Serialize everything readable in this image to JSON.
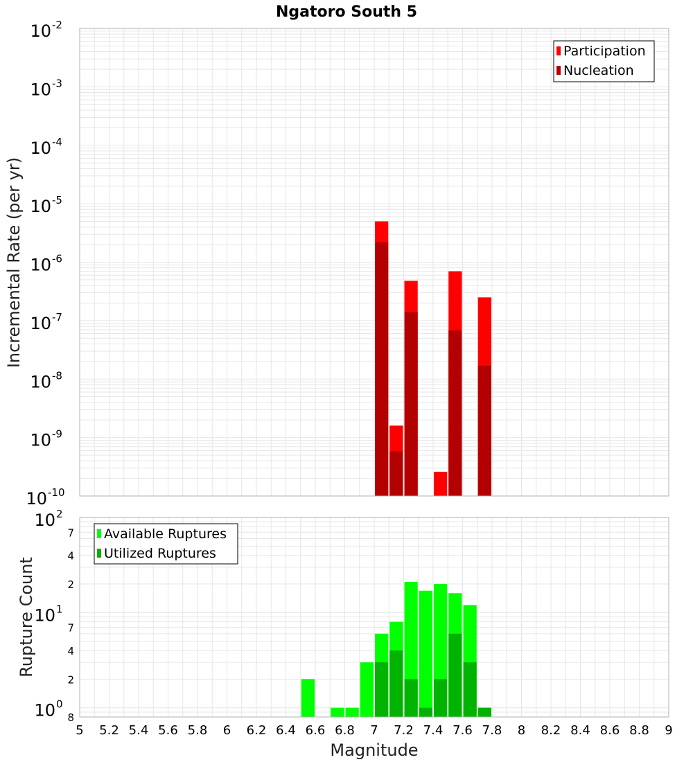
{
  "chart_data": [
    {
      "type": "bar",
      "title": "Ngatoro South 5",
      "ylabel": "Incremental Rate (per yr)",
      "xlabel": "",
      "xlim": [
        5,
        9
      ],
      "ylim": [
        1e-10,
        0.01
      ],
      "yscale": "log",
      "bin_width": 0.1,
      "legend": {
        "placement": "top-right",
        "entries": [
          {
            "name": "Participation",
            "color": "#ff0000"
          },
          {
            "name": "Nucleation",
            "color": "#b30000"
          }
        ]
      },
      "y_ticks": [
        {
          "base": "10",
          "exp": "-10",
          "value": 1e-10
        },
        {
          "base": "10",
          "exp": "-9",
          "value": 1e-09
        },
        {
          "base": "10",
          "exp": "-8",
          "value": 1e-08
        },
        {
          "base": "10",
          "exp": "-7",
          "value": 1e-07
        },
        {
          "base": "10",
          "exp": "-6",
          "value": 1e-06
        },
        {
          "base": "10",
          "exp": "-5",
          "value": 1e-05
        },
        {
          "base": "10",
          "exp": "-4",
          "value": 0.0001
        },
        {
          "base": "10",
          "exp": "-3",
          "value": 0.001
        },
        {
          "base": "10",
          "exp": "-2",
          "value": 0.01
        }
      ],
      "x": [
        7.05,
        7.15,
        7.25,
        7.45,
        7.55,
        7.75
      ],
      "series": [
        {
          "name": "Participation",
          "color": "#ff0000",
          "values": [
            5e-06,
            1.6e-09,
            4.8e-07,
            2.6e-10,
            7e-07,
            2.5e-07
          ]
        },
        {
          "name": "Nucleation",
          "color": "#b30000",
          "values": [
            2.2e-06,
            5.8e-10,
            1.4e-07,
            null,
            6.8e-08,
            1.7e-08
          ]
        }
      ]
    },
    {
      "type": "bar",
      "title": "",
      "ylabel": "Rupture Count",
      "xlabel": "Magnitude",
      "xlim": [
        5,
        9
      ],
      "ylim": [
        0.8,
        100
      ],
      "yscale": "log",
      "bin_width": 0.1,
      "legend": {
        "placement": "top-left",
        "entries": [
          {
            "name": "Available Ruptures",
            "color": "#00ff00"
          },
          {
            "name": "Utilized Ruptures",
            "color": "#00b300"
          }
        ]
      },
      "y_ticks": [
        {
          "base": "10",
          "exp": "0",
          "value": 1
        },
        {
          "base": "10",
          "exp": "1",
          "value": 10
        },
        {
          "base": "10",
          "exp": "2",
          "value": 100
        }
      ],
      "y_minor_labels": [
        {
          "label": "8",
          "value": 0.8
        },
        {
          "label": "2",
          "value": 2
        },
        {
          "label": "4",
          "value": 4
        },
        {
          "label": "7",
          "value": 7
        },
        {
          "label": "2",
          "value": 20
        },
        {
          "label": "4",
          "value": 40
        },
        {
          "label": "7",
          "value": 70
        }
      ],
      "x_ticks": [
        "5",
        "5.2",
        "5.4",
        "5.6",
        "5.8",
        "6",
        "6.2",
        "6.4",
        "6.6",
        "6.8",
        "7",
        "7.2",
        "7.4",
        "7.6",
        "7.8",
        "8",
        "8.2",
        "8.4",
        "8.6",
        "8.8",
        "9"
      ],
      "x": [
        6.55,
        6.75,
        6.85,
        6.95,
        7.05,
        7.15,
        7.25,
        7.35,
        7.45,
        7.55,
        7.65,
        7.75
      ],
      "series": [
        {
          "name": "Available Ruptures",
          "color": "#00ff00",
          "values": [
            2,
            1,
            1,
            3,
            6,
            8,
            21,
            17,
            20,
            16,
            12,
            1
          ]
        },
        {
          "name": "Utilized Ruptures",
          "color": "#00b300",
          "values": [
            null,
            null,
            null,
            null,
            3,
            4,
            2,
            1,
            2,
            6,
            3,
            1
          ]
        }
      ]
    }
  ]
}
